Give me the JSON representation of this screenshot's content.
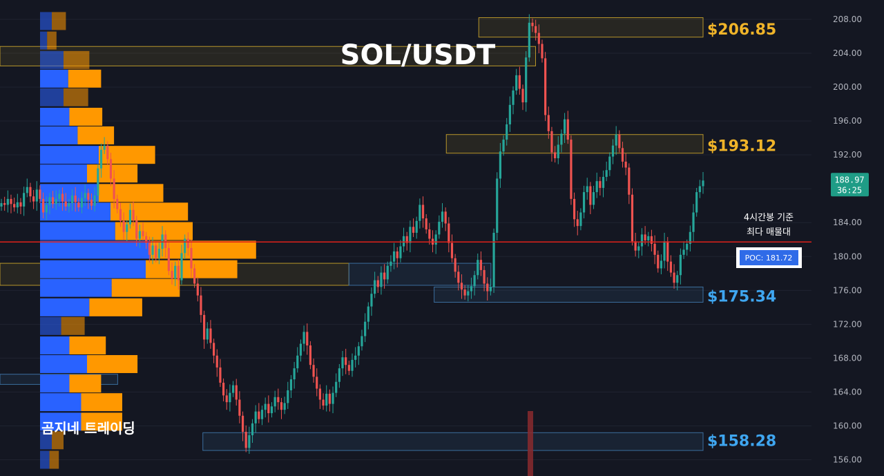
{
  "title": "SOL/USDT",
  "watermark": "곰지네 트레이딩",
  "annotation": {
    "line1": "4시간봉 기준",
    "line2": "최다 매물대"
  },
  "poc": {
    "label": "POC: 181.72",
    "price": 181.72
  },
  "current_price": {
    "value": "188.97",
    "countdown": "36:25"
  },
  "colors": {
    "up": "#26a69a",
    "down": "#ef5350",
    "buy_volume": "#2962ff",
    "sell_volume": "#ff9800",
    "poc_line": "#e0201a",
    "gold_zone": "#b8962a",
    "blue_zone": "#3b6e9e"
  },
  "chart_data": {
    "type": "candlestick",
    "title": "SOL/USDT",
    "ylim": [
      154.5,
      210
    ],
    "y_ticks": [
      "156.00",
      "160.00",
      "164.00",
      "168.00",
      "172.00",
      "176.00",
      "180.00",
      "184.00",
      "188.00",
      "192.00",
      "196.00",
      "200.00",
      "204.00",
      "208.00"
    ],
    "levels": [
      {
        "label": "$206.85",
        "price": 206.85,
        "band": [
          205.9,
          208.2
        ],
        "x_start": 0.59,
        "style": "gold"
      },
      {
        "label": "$193.12",
        "price": 193.12,
        "band": [
          192.2,
          194.4
        ],
        "x_start": 0.55,
        "style": "gold"
      },
      {
        "label": "$175.34",
        "price": 175.34,
        "band": [
          174.6,
          176.4
        ],
        "x_start": 0.535,
        "style": "blue"
      },
      {
        "label": "$158.28",
        "price": 158.28,
        "band": [
          157.1,
          159.2
        ],
        "x_start": 0.25,
        "style": "blue"
      }
    ],
    "extra_zones": [
      {
        "band": [
          202.5,
          204.8
        ],
        "x": [
          0,
          0.66
        ],
        "style": "gold"
      },
      {
        "band": [
          176.6,
          179.2
        ],
        "x": [
          0,
          0.43
        ],
        "style": "gold"
      },
      {
        "band": [
          176.6,
          179.2
        ],
        "x": [
          0.43,
          0.605
        ],
        "style": "blue"
      },
      {
        "band": [
          164.9,
          166.1
        ],
        "x": [
          0,
          0.145
        ],
        "style": "blue"
      }
    ],
    "volume_profile": [
      {
        "price": 207.8,
        "buy": 0.1,
        "sell": 0.12
      },
      {
        "price": 205.5,
        "buy": 0.06,
        "sell": 0.08
      },
      {
        "price": 203.2,
        "buy": 0.2,
        "sell": 0.22
      },
      {
        "price": 201.0,
        "buy": 0.24,
        "sell": 0.28
      },
      {
        "price": 198.8,
        "buy": 0.2,
        "sell": 0.21
      },
      {
        "price": 196.5,
        "buy": 0.25,
        "sell": 0.28
      },
      {
        "price": 194.3,
        "buy": 0.32,
        "sell": 0.31
      },
      {
        "price": 192.0,
        "buy": 0.5,
        "sell": 0.48
      },
      {
        "price": 189.8,
        "buy": 0.4,
        "sell": 0.43
      },
      {
        "price": 187.5,
        "buy": 0.5,
        "sell": 0.55
      },
      {
        "price": 185.3,
        "buy": 0.6,
        "sell": 0.66
      },
      {
        "price": 183.0,
        "buy": 0.64,
        "sell": 0.66
      },
      {
        "price": 180.8,
        "buy": 0.94,
        "sell": 0.9
      },
      {
        "price": 178.5,
        "buy": 0.9,
        "sell": 0.78
      },
      {
        "price": 176.3,
        "buy": 0.61,
        "sell": 0.58
      },
      {
        "price": 174.0,
        "buy": 0.42,
        "sell": 0.45
      },
      {
        "price": 171.8,
        "buy": 0.18,
        "sell": 0.2
      },
      {
        "price": 169.5,
        "buy": 0.25,
        "sell": 0.31
      },
      {
        "price": 167.3,
        "buy": 0.4,
        "sell": 0.43
      },
      {
        "price": 165.0,
        "buy": 0.25,
        "sell": 0.27
      },
      {
        "price": 162.8,
        "buy": 0.35,
        "sell": 0.35
      },
      {
        "price": 160.5,
        "buy": 0.35,
        "sell": 0.35
      },
      {
        "price": 158.3,
        "buy": 0.1,
        "sell": 0.1
      },
      {
        "price": 156.0,
        "buy": 0.08,
        "sell": 0.08
      }
    ],
    "candles_close": [
      186.3,
      186.1,
      186.8,
      186.2,
      185.8,
      186.4,
      185.9,
      187.5,
      188.2,
      187.1,
      186.5,
      187.9,
      186.8,
      185.2,
      186.1,
      187.0,
      186.2,
      186.8,
      187.4,
      186.5,
      185.9,
      186.3,
      187.2,
      186.4,
      185.8,
      186.9,
      187.5,
      186.7,
      186.0,
      187.2,
      190.4,
      192.6,
      193.1,
      191.5,
      189.2,
      186.8,
      185.6,
      184.2,
      182.9,
      183.8,
      185.5,
      184.3,
      182.1,
      183.0,
      182.4,
      181.6,
      180.2,
      181.3,
      179.8,
      180.9,
      182.6,
      181.0,
      178.3,
      177.4,
      178.9,
      177.2,
      180.4,
      182.1,
      181.0,
      178.6,
      176.8,
      175.4,
      173.1,
      170.2,
      171.5,
      169.8,
      168.3,
      166.9,
      165.1,
      163.6,
      162.8,
      163.9,
      164.8,
      163.1,
      161.2,
      159.3,
      157.4,
      158.9,
      160.3,
      161.7,
      160.8,
      161.9,
      162.6,
      161.5,
      162.3,
      163.4,
      162.8,
      161.9,
      162.7,
      164.2,
      165.5,
      166.8,
      168.3,
      169.7,
      171.1,
      169.5,
      167.2,
      165.8,
      164.4,
      163.1,
      162.4,
      163.8,
      162.6,
      163.9,
      165.2,
      166.8,
      168.1,
      167.2,
      166.5,
      167.8,
      168.3,
      169.4,
      170.6,
      172.3,
      174.1,
      175.6,
      177.2,
      176.4,
      178.1,
      177.3,
      178.9,
      179.4,
      180.6,
      179.8,
      181.2,
      182.4,
      181.6,
      183.5,
      182.8,
      184.2,
      186.1,
      184.5,
      183.2,
      182.1,
      181.4,
      182.6,
      184.1,
      185.3,
      183.9,
      181.6,
      179.8,
      178.2,
      176.9,
      176.1,
      175.4,
      175.9,
      176.5,
      177.8,
      179.6,
      178.4,
      176.8,
      175.9,
      176.4,
      182.8,
      189.2,
      192.4,
      193.8,
      195.6,
      197.9,
      199.6,
      201.4,
      199.8,
      198.2,
      203.5,
      207.6,
      207.2,
      206.4,
      205.1,
      203.4,
      196.7,
      194.8,
      192.3,
      191.6,
      193.2,
      194.5,
      196.2,
      193.8,
      186.8,
      184.4,
      183.6,
      185.2,
      187.6,
      188.3,
      186.1,
      187.6,
      188.9,
      188.1,
      189.4,
      190.2,
      191.8,
      193.1,
      194.4,
      192.8,
      191.2,
      190.5,
      187.3,
      181.8,
      180.7,
      181.2,
      182.6,
      181.9,
      182.4,
      181.5,
      180.2,
      178.6,
      179.5,
      181.8,
      179.4,
      178.1,
      176.9,
      177.8,
      180.2,
      180.8,
      181.5,
      182.9,
      185.2,
      187.6,
      188.3,
      188.97
    ]
  }
}
